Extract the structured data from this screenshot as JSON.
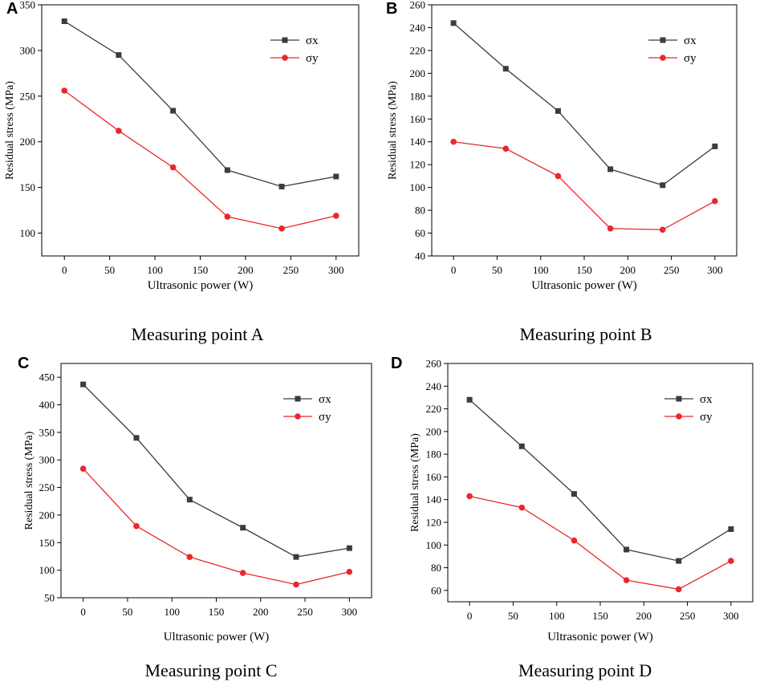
{
  "chart_data": [
    {
      "type": "line",
      "panel_label": "A",
      "caption": "Measuring point A",
      "xlabel": "Ultrasonic power (W)",
      "ylabel": "Residual stress (MPa)",
      "x": [
        0,
        60,
        120,
        180,
        240,
        300
      ],
      "xlim": [
        -25,
        325
      ],
      "ylim": [
        75,
        350
      ],
      "xticks": [
        0,
        50,
        100,
        150,
        200,
        250,
        300
      ],
      "yticks": [
        100,
        150,
        200,
        250,
        300,
        350
      ],
      "legend_position": "top-right",
      "series": [
        {
          "name": "σx",
          "color": "#3c3c3c",
          "marker": "square",
          "values": [
            332,
            295,
            234,
            169,
            151,
            162
          ]
        },
        {
          "name": "σy",
          "color": "#e8282a",
          "marker": "circle",
          "values": [
            256,
            212,
            172,
            118,
            105,
            119
          ]
        }
      ]
    },
    {
      "type": "line",
      "panel_label": "B",
      "caption": "Measuring point B",
      "xlabel": "Ultrasonic power (W)",
      "ylabel": "Residual stress (MPa)",
      "x": [
        0,
        60,
        120,
        180,
        240,
        300
      ],
      "xlim": [
        -25,
        325
      ],
      "ylim": [
        40,
        260
      ],
      "xticks": [
        0,
        50,
        100,
        150,
        200,
        250,
        300
      ],
      "yticks": [
        40,
        60,
        80,
        100,
        120,
        140,
        160,
        180,
        200,
        220,
        240,
        260
      ],
      "legend_position": "top-right",
      "series": [
        {
          "name": "σx",
          "color": "#3c3c3c",
          "marker": "square",
          "values": [
            244,
            204,
            167,
            116,
            102,
            136
          ]
        },
        {
          "name": "σy",
          "color": "#e8282a",
          "marker": "circle",
          "values": [
            140,
            134,
            110,
            64,
            63,
            88
          ]
        }
      ]
    },
    {
      "type": "line",
      "panel_label": "C",
      "caption": "Measuring point C",
      "xlabel": "Ultrasonic power (W)",
      "ylabel": "Residual stress (MPa)",
      "x": [
        0,
        60,
        120,
        180,
        240,
        300
      ],
      "xlim": [
        -25,
        325
      ],
      "ylim": [
        50,
        475
      ],
      "xticks": [
        0,
        50,
        100,
        150,
        200,
        250,
        300
      ],
      "yticks": [
        50,
        100,
        150,
        200,
        250,
        300,
        350,
        400,
        450
      ],
      "legend_position": "top-right",
      "series": [
        {
          "name": "σx",
          "color": "#3c3c3c",
          "marker": "square",
          "values": [
            437,
            340,
            228,
            177,
            124,
            140
          ]
        },
        {
          "name": "σy",
          "color": "#e8282a",
          "marker": "circle",
          "values": [
            284,
            180,
            124,
            95,
            74,
            97
          ]
        }
      ]
    },
    {
      "type": "line",
      "panel_label": "D",
      "caption": "Measuring point D",
      "xlabel": "Ultrasonic power (W)",
      "ylabel": "Residual stress (MPa)",
      "x": [
        0,
        60,
        120,
        180,
        240,
        300
      ],
      "xlim": [
        -25,
        325
      ],
      "ylim": [
        50,
        260
      ],
      "xticks": [
        0,
        50,
        100,
        150,
        200,
        250,
        300
      ],
      "yticks": [
        60,
        80,
        100,
        120,
        140,
        160,
        180,
        200,
        220,
        240,
        260
      ],
      "legend_position": "top-right",
      "series": [
        {
          "name": "σx",
          "color": "#3c3c3c",
          "marker": "square",
          "values": [
            228,
            187,
            145,
            96,
            86,
            114
          ]
        },
        {
          "name": "σy",
          "color": "#e8282a",
          "marker": "circle",
          "values": [
            143,
            133,
            104,
            69,
            61,
            86
          ]
        }
      ]
    }
  ]
}
